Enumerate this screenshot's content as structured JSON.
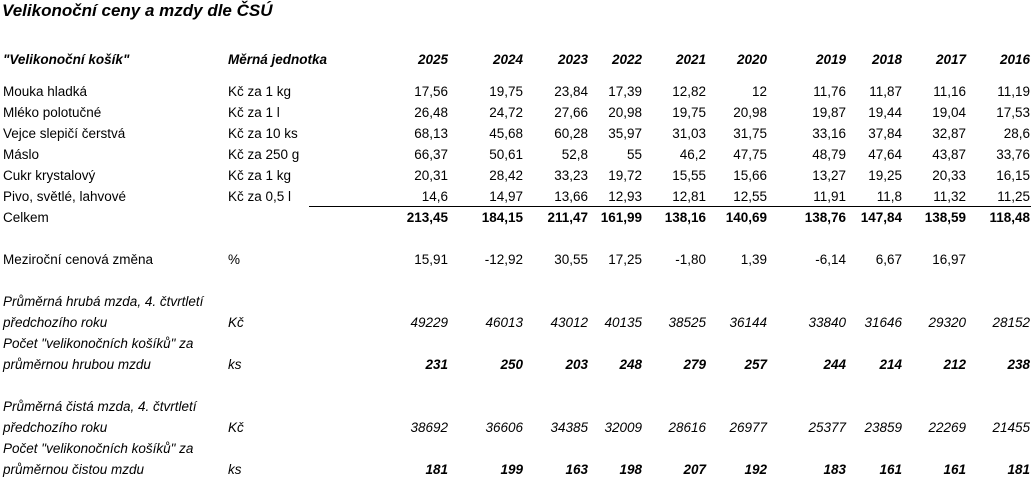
{
  "title": "Velikonoční ceny a mzdy dle ČSÚ",
  "header": {
    "label": "\"Velikonoční košík\"",
    "unit": "Měrná jednotka",
    "years": [
      "2025",
      "2024",
      "2023",
      "2022",
      "2021",
      "2020",
      "2019",
      "2018",
      "2017",
      "2016"
    ]
  },
  "items": [
    {
      "name": "Mouka hladká",
      "unit": "Kč za 1 kg",
      "values": [
        "17,56",
        "19,75",
        "23,84",
        "17,39",
        "12,82",
        "12",
        "11,76",
        "11,87",
        "11,16",
        "11,19"
      ]
    },
    {
      "name": "Mléko polotučné",
      "unit": "Kč za 1 l",
      "values": [
        "26,48",
        "24,72",
        "27,66",
        "20,98",
        "19,75",
        "20,98",
        "19,87",
        "19,44",
        "19,04",
        "17,53"
      ]
    },
    {
      "name": "Vejce slepičí čerstvá",
      "unit": "Kč za 10 ks",
      "values": [
        "68,13",
        "45,68",
        "60,28",
        "35,97",
        "31,03",
        "31,75",
        "33,16",
        "37,84",
        "32,87",
        "28,6"
      ]
    },
    {
      "name": "Máslo",
      "unit": "Kč za 250 g",
      "values": [
        "66,37",
        "50,61",
        "52,8",
        "55",
        "46,2",
        "47,75",
        "48,79",
        "47,64",
        "43,87",
        "33,76"
      ]
    },
    {
      "name": "Cukr krystalový",
      "unit": "Kč za 1 kg",
      "values": [
        "20,31",
        "28,42",
        "33,23",
        "19,72",
        "15,55",
        "15,66",
        "13,27",
        "19,25",
        "20,33",
        "16,15"
      ]
    },
    {
      "name": "Pivo, světlé, lahvové",
      "unit": "Kč za 0,5 l",
      "values": [
        "14,6",
        "14,97",
        "13,66",
        "12,93",
        "12,81",
        "12,55",
        "11,91",
        "11,8",
        "11,32",
        "11,25"
      ]
    }
  ],
  "total": {
    "label": "Celkem",
    "values": [
      "213,45",
      "184,15",
      "211,47",
      "161,99",
      "138,16",
      "140,69",
      "138,76",
      "147,84",
      "138,59",
      "118,48"
    ]
  },
  "change": {
    "label": "Meziroční cenová změna",
    "unit": "%",
    "values": [
      "15,91",
      "-12,92",
      "30,55",
      "17,25",
      "-1,80",
      "1,39",
      "-6,14",
      "6,67",
      "16,97",
      ""
    ]
  },
  "gross": {
    "label_line1": "Průměrná hrubá mzda, 4. čtvrtletí",
    "label_line2": "předchozího roku",
    "unit": "Kč",
    "values": [
      "49229",
      "46013",
      "43012",
      "40135",
      "38525",
      "36144",
      "33840",
      "31646",
      "29320",
      "28152"
    ],
    "count_line1": "Počet \"velikonočních košíků\" za",
    "count_line2": "průměrnou hrubou mzdu",
    "count_unit": "ks",
    "count_values": [
      "231",
      "250",
      "203",
      "248",
      "279",
      "257",
      "244",
      "214",
      "212",
      "238"
    ]
  },
  "net": {
    "label_line1": "Průměrná čistá mzda, 4. čtvrtletí",
    "label_line2": "předchozího roku",
    "unit": "Kč",
    "values": [
      "38692",
      "36606",
      "34385",
      "32009",
      "28616",
      "26977",
      "25377",
      "23859",
      "22269",
      "21455"
    ],
    "count_line1": "Počet \"velikonočních košíků\" za",
    "count_line2": "průměrnou čistou mzdu",
    "count_unit": "ks",
    "count_values": [
      "181",
      "199",
      "163",
      "198",
      "207",
      "192",
      "183",
      "161",
      "161",
      "181"
    ]
  }
}
